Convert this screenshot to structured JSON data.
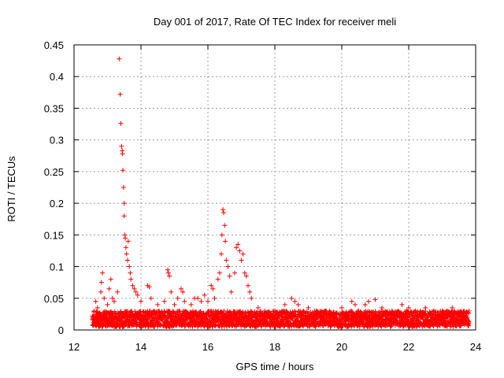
{
  "chart_data": {
    "type": "scatter",
    "title": "Day 001 of 2017, Rate Of TEC Index for receiver meli",
    "xlabel": "GPS time / hours",
    "ylabel": "ROTI / TECUs",
    "xlim": [
      12,
      24
    ],
    "ylim": [
      0,
      0.45
    ],
    "x_ticks": [
      "12",
      "14",
      "16",
      "18",
      "20",
      "22",
      "24"
    ],
    "y_ticks": [
      "0",
      "0.05",
      "0.1",
      "0.15",
      "0.2",
      "0.25",
      "0.3",
      "0.35",
      "0.4",
      "0.45"
    ],
    "grid": true,
    "marker": "+",
    "color": "#ff0000",
    "series": [
      {
        "points": [
          [
            12.55,
            0.022
          ],
          [
            12.6,
            0.03
          ],
          [
            12.65,
            0.045
          ],
          [
            12.7,
            0.035
          ],
          [
            12.8,
            0.06
          ],
          [
            12.82,
            0.075
          ],
          [
            12.85,
            0.09
          ],
          [
            12.9,
            0.05
          ],
          [
            13.0,
            0.04
          ],
          [
            13.05,
            0.065
          ],
          [
            13.1,
            0.08
          ],
          [
            13.15,
            0.05
          ],
          [
            13.2,
            0.045
          ],
          [
            13.3,
            0.06
          ],
          [
            13.35,
            0.428
          ],
          [
            13.38,
            0.372
          ],
          [
            13.4,
            0.326
          ],
          [
            13.42,
            0.29
          ],
          [
            13.44,
            0.283
          ],
          [
            13.45,
            0.278
          ],
          [
            13.46,
            0.252
          ],
          [
            13.48,
            0.225
          ],
          [
            13.5,
            0.2
          ],
          [
            13.5,
            0.18
          ],
          [
            13.52,
            0.15
          ],
          [
            13.53,
            0.145
          ],
          [
            13.55,
            0.13
          ],
          [
            13.57,
            0.12
          ],
          [
            13.6,
            0.11
          ],
          [
            13.62,
            0.14
          ],
          [
            13.65,
            0.1
          ],
          [
            13.68,
            0.09
          ],
          [
            13.7,
            0.08
          ],
          [
            13.75,
            0.07
          ],
          [
            13.8,
            0.065
          ],
          [
            13.85,
            0.06
          ],
          [
            13.9,
            0.055
          ],
          [
            14.0,
            0.045
          ],
          [
            14.2,
            0.07
          ],
          [
            14.25,
            0.068
          ],
          [
            14.3,
            0.05
          ],
          [
            14.5,
            0.04
          ],
          [
            14.7,
            0.045
          ],
          [
            14.8,
            0.095
          ],
          [
            14.82,
            0.09
          ],
          [
            14.85,
            0.085
          ],
          [
            14.9,
            0.06
          ],
          [
            15.0,
            0.04
          ],
          [
            15.1,
            0.05
          ],
          [
            15.2,
            0.065
          ],
          [
            15.25,
            0.06
          ],
          [
            15.3,
            0.045
          ],
          [
            15.5,
            0.04
          ],
          [
            15.6,
            0.05
          ],
          [
            15.7,
            0.05
          ],
          [
            15.8,
            0.045
          ],
          [
            15.9,
            0.055
          ],
          [
            16.0,
            0.045
          ],
          [
            16.1,
            0.07
          ],
          [
            16.15,
            0.065
          ],
          [
            16.2,
            0.05
          ],
          [
            16.3,
            0.08
          ],
          [
            16.35,
            0.09
          ],
          [
            16.4,
            0.12
          ],
          [
            16.42,
            0.15
          ],
          [
            16.45,
            0.19
          ],
          [
            16.47,
            0.185
          ],
          [
            16.5,
            0.165
          ],
          [
            16.52,
            0.14
          ],
          [
            16.55,
            0.11
          ],
          [
            16.6,
            0.1
          ],
          [
            16.65,
            0.085
          ],
          [
            16.7,
            0.06
          ],
          [
            16.8,
            0.09
          ],
          [
            16.85,
            0.13
          ],
          [
            16.9,
            0.135
          ],
          [
            16.95,
            0.125
          ],
          [
            17.0,
            0.11
          ],
          [
            17.05,
            0.12
          ],
          [
            17.1,
            0.09
          ],
          [
            17.15,
            0.085
          ],
          [
            17.2,
            0.07
          ],
          [
            17.25,
            0.06
          ],
          [
            17.3,
            0.05
          ],
          [
            17.5,
            0.035
          ],
          [
            17.7,
            0.03
          ],
          [
            18.0,
            0.03
          ],
          [
            18.3,
            0.04
          ],
          [
            18.5,
            0.05
          ],
          [
            18.6,
            0.045
          ],
          [
            18.7,
            0.04
          ],
          [
            19.0,
            0.035
          ],
          [
            19.5,
            0.03
          ],
          [
            20.0,
            0.035
          ],
          [
            20.3,
            0.045
          ],
          [
            20.4,
            0.04
          ],
          [
            20.5,
            0.03
          ],
          [
            20.7,
            0.04
          ],
          [
            20.8,
            0.045
          ],
          [
            21.0,
            0.048
          ],
          [
            21.2,
            0.035
          ],
          [
            21.5,
            0.03
          ],
          [
            21.8,
            0.04
          ],
          [
            22.0,
            0.035
          ],
          [
            22.2,
            0.03
          ],
          [
            22.5,
            0.035
          ],
          [
            22.8,
            0.025
          ],
          [
            23.0,
            0.03
          ],
          [
            23.3,
            0.035
          ],
          [
            23.5,
            0.025
          ],
          [
            23.8,
            0.03
          ]
        ]
      }
    ],
    "dense_band": {
      "x_range": [
        12.55,
        23.8
      ],
      "y_range": [
        0.005,
        0.03
      ]
    }
  }
}
